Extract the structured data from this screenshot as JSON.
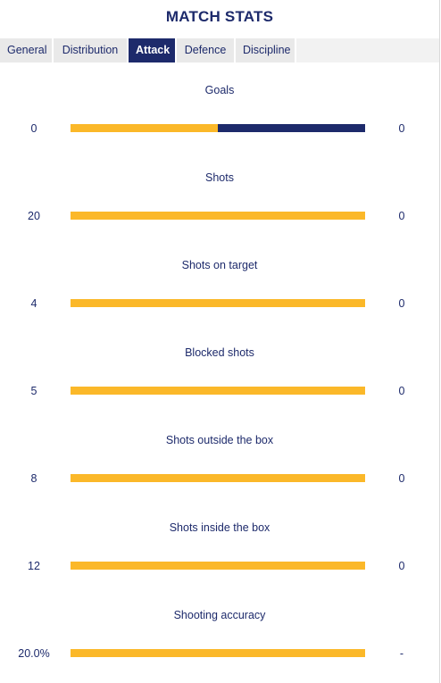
{
  "header": {
    "title": "MATCH STATS"
  },
  "tabs": [
    {
      "label": "General"
    },
    {
      "label": "Distribution"
    },
    {
      "label": "Attack"
    },
    {
      "label": "Defence"
    },
    {
      "label": "Discipline"
    }
  ],
  "active_tab": "Attack",
  "colors": {
    "home": "#fbb829",
    "away": "#1d2a6b",
    "primary": "#1d2a6b"
  },
  "stats": [
    {
      "label": "Goals",
      "home": "0",
      "away": "0",
      "home_share": 0.5
    },
    {
      "label": "Shots",
      "home": "20",
      "away": "0",
      "home_share": 1.0
    },
    {
      "label": "Shots on target",
      "home": "4",
      "away": "0",
      "home_share": 1.0
    },
    {
      "label": "Blocked shots",
      "home": "5",
      "away": "0",
      "home_share": 1.0
    },
    {
      "label": "Shots outside the box",
      "home": "8",
      "away": "0",
      "home_share": 1.0
    },
    {
      "label": "Shots inside the box",
      "home": "12",
      "away": "0",
      "home_share": 1.0
    },
    {
      "label": "Shooting accuracy",
      "home": "20.0%",
      "away": "-",
      "home_share": 1.0
    }
  ]
}
